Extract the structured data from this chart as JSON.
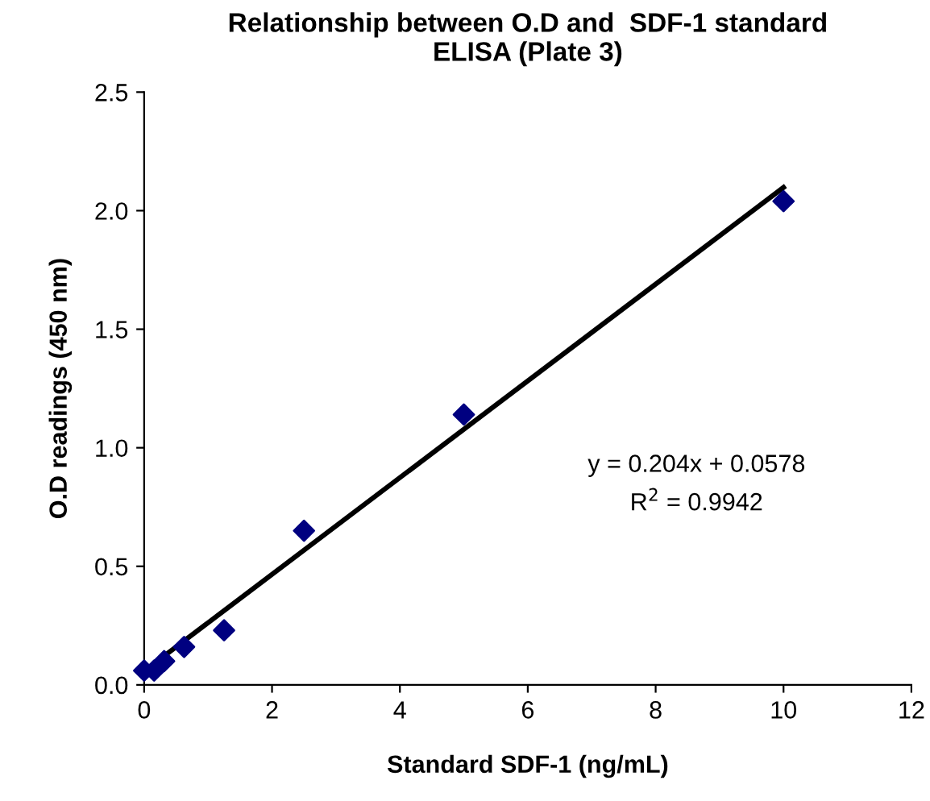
{
  "chart_data": {
    "type": "scatter",
    "title": "Relationship between O.D and  SDF-1 standard\nELISA (Plate 3)",
    "xlabel": "Standard SDF-1 (ng/mL)",
    "ylabel": "O.D readings (450 nm)",
    "series": [
      {
        "color": "#000080",
        "marker": "diamond",
        "x": [
          0,
          0.156,
          0.3125,
          0.625,
          1.25,
          2.5,
          5,
          10
        ],
        "values": [
          0.06,
          0.06,
          0.1,
          0.16,
          0.23,
          0.65,
          1.14,
          2.04
        ]
      },
      {
        "type": "line",
        "color": "#000000",
        "x": [
          0,
          10
        ],
        "values": [
          0.058,
          2.098
        ]
      }
    ],
    "annotations": [
      "y = 0.204x + 0.0578",
      "R$^{2}$ = 0.9942"
    ],
    "xlim": [
      0,
      12
    ],
    "xticks": [
      0,
      2,
      4,
      6,
      8,
      10,
      12
    ],
    "ylim": [
      0,
      2.5
    ],
    "yticks": [
      {
        "value": 0,
        "label": "0.0"
      },
      {
        "value": 0.5,
        "label": "0.5"
      },
      {
        "value": 1,
        "label": "1.0"
      },
      {
        "value": 1.5,
        "label": "1.5"
      },
      {
        "value": 2,
        "label": "2.0"
      },
      {
        "value": 2.5,
        "label": "2.5"
      }
    ],
    "grid": false,
    "legend": false
  }
}
